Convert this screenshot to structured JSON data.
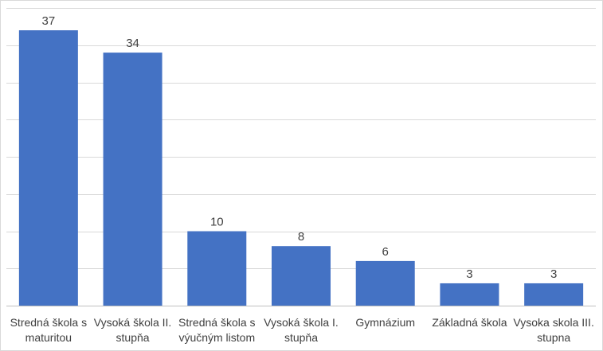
{
  "chart_data": {
    "type": "bar",
    "categories": [
      [
        "Stredná škola s",
        "maturitou"
      ],
      [
        "Vysoká škola II.",
        "stupňa"
      ],
      [
        "Stredná škola s",
        "výučným listom"
      ],
      [
        "Vysoká škola I.",
        "stupňa"
      ],
      [
        "Gymnázium"
      ],
      [
        "Základná škola"
      ],
      [
        "Vysoka skola III.",
        "stupna"
      ]
    ],
    "values": [
      37,
      34,
      10,
      8,
      6,
      3,
      3
    ],
    "data_labels": [
      "37",
      "34",
      "10",
      "8",
      "6",
      "3",
      "3"
    ],
    "title": "",
    "xlabel": "",
    "ylabel": "",
    "ylim": [
      0,
      40
    ],
    "grid": true,
    "bar_color": "#4472c4",
    "grid_color": "#d9d9d9",
    "text_color": "#404040"
  }
}
